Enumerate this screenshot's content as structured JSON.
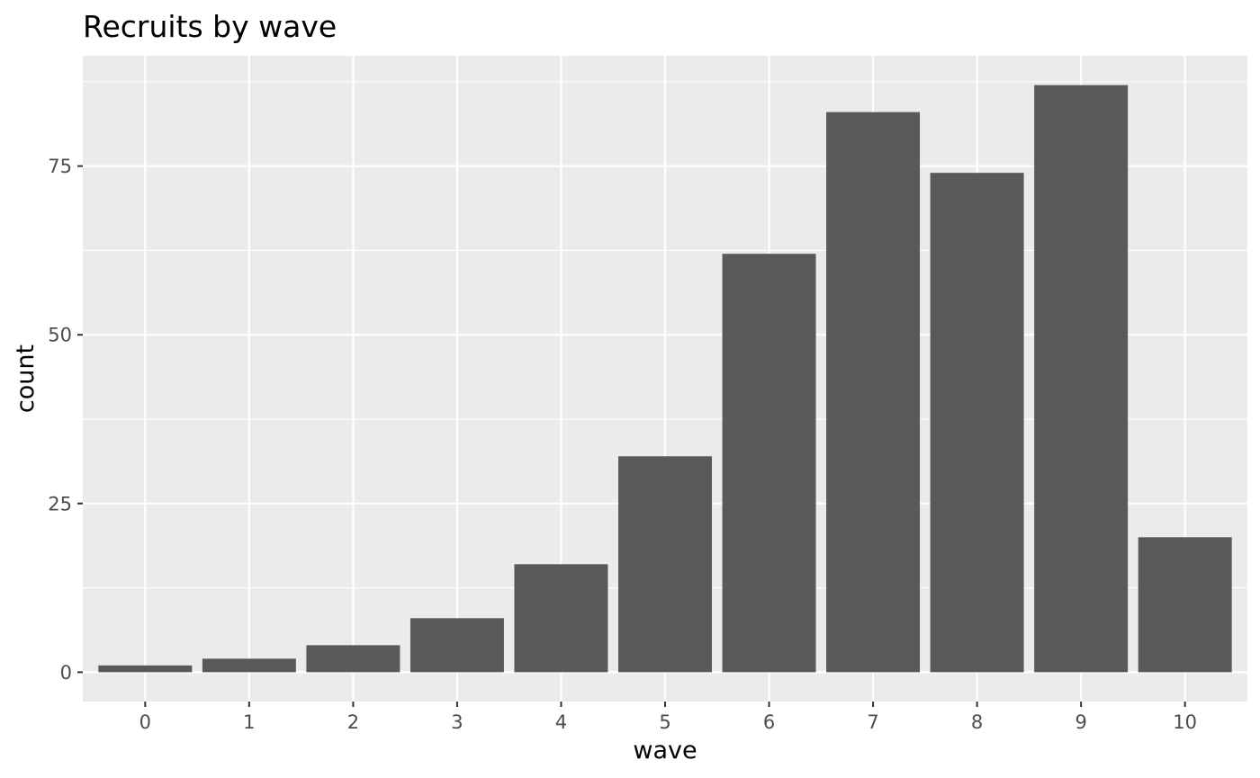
{
  "chart_data": {
    "type": "bar",
    "title": "Recruits by wave",
    "xlabel": "wave",
    "ylabel": "count",
    "categories": [
      "0",
      "1",
      "2",
      "3",
      "4",
      "5",
      "6",
      "7",
      "8",
      "9",
      "10"
    ],
    "values": [
      1,
      2,
      4,
      8,
      16,
      32,
      62,
      83,
      74,
      87,
      20
    ],
    "ylim": [
      -4.35,
      91.35
    ],
    "yticks": [
      0,
      25,
      50,
      75
    ],
    "yticks_labels": [
      "0",
      "25",
      "50",
      "75"
    ],
    "grid": true,
    "legend": "none",
    "colors": {
      "bar": "#595959",
      "panel": "#ebebeb",
      "grid": "#ffffff",
      "tick_text": "#4d4d4d",
      "tick_mark": "#333333"
    }
  }
}
